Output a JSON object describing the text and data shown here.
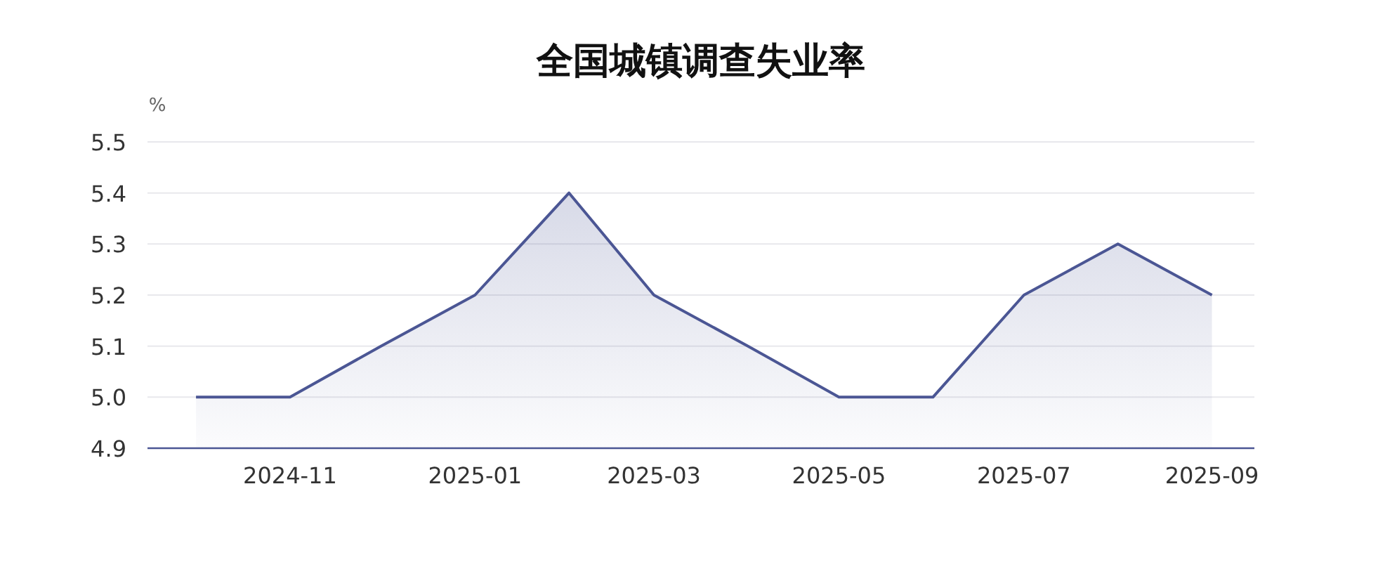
{
  "chart_data": {
    "type": "area",
    "title": "全国城镇调查失业率",
    "ylabel": "%",
    "x": [
      "2024-10",
      "2024-11",
      "2024-12",
      "2025-01",
      "2025-02",
      "2025-03",
      "2025-04",
      "2025-05",
      "2025-06",
      "2025-07",
      "2025-08",
      "2025-09"
    ],
    "series": [
      {
        "color": "#4b5694",
        "values": [
          5.0,
          5.0,
          5.1,
          5.2,
          5.4,
          5.2,
          5.1,
          5.0,
          5.0,
          5.2,
          5.3,
          5.2
        ]
      }
    ],
    "xlim": [
      "2024-09-15",
      "2025-09-15"
    ],
    "xticks": [
      "2024-11",
      "2025-01",
      "2025-03",
      "2025-05",
      "2025-07",
      "2025-09"
    ],
    "ylim": [
      4.9,
      5.5
    ],
    "yticks": [
      4.9,
      {
        "value": 5.0,
        "label": "5.0"
      },
      5.1,
      5.2,
      5.3,
      5.4,
      5.5
    ],
    "grid": "y"
  }
}
